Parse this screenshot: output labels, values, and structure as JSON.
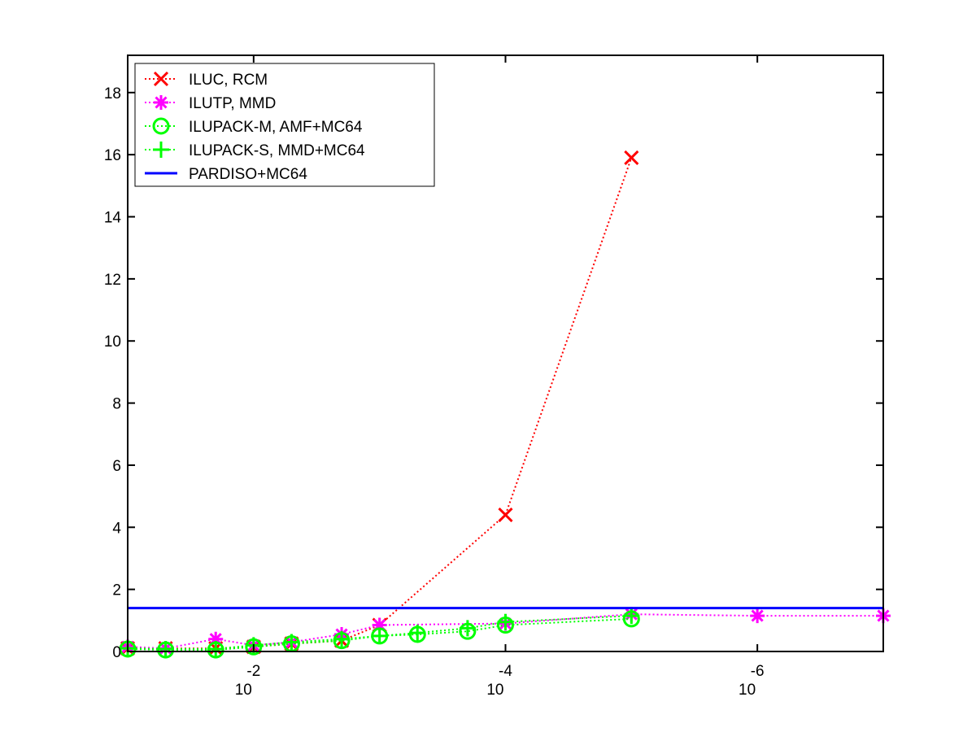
{
  "chart_data": {
    "type": "line",
    "title": "",
    "xlabel": "",
    "ylabel": "",
    "x_scale": "log-reversed",
    "xlim": [
      0.1,
      1e-07
    ],
    "ylim": [
      0,
      19.2
    ],
    "x_ticks": [
      {
        "value": 0.01,
        "base": "10",
        "exp": "-2"
      },
      {
        "value": 0.0001,
        "base": "10",
        "exp": "-4"
      },
      {
        "value": 1e-06,
        "base": "10",
        "exp": "-6"
      }
    ],
    "y_ticks": [
      0,
      2,
      4,
      6,
      8,
      10,
      12,
      14,
      16,
      18
    ],
    "grid": false,
    "legend": "top-left",
    "series": [
      {
        "name": "ILUC, RCM",
        "color": "#ff0000",
        "marker": "x",
        "style": "dotted",
        "x": [
          0.1,
          0.05,
          0.02,
          0.01,
          0.005,
          0.002,
          0.001,
          0.0001,
          1e-05
        ],
        "y": [
          0.1,
          0.1,
          0.1,
          0.15,
          0.25,
          0.35,
          0.85,
          4.4,
          15.9
        ]
      },
      {
        "name": "ILUTP, MMD",
        "color": "#ff00ff",
        "marker": "asterisk",
        "style": "dotted",
        "x": [
          0.1,
          0.05,
          0.02,
          0.01,
          0.005,
          0.002,
          0.001,
          0.0001,
          1e-05,
          1e-06,
          1e-07
        ],
        "y": [
          0.15,
          0.1,
          0.4,
          0.2,
          0.3,
          0.55,
          0.85,
          0.9,
          1.2,
          1.15,
          1.15
        ]
      },
      {
        "name": "ILUPACK-M, AMF+MC64",
        "color": "#00ff00",
        "marker": "circle",
        "style": "dotted",
        "x": [
          0.1,
          0.05,
          0.02,
          0.01,
          0.005,
          0.002,
          0.001,
          0.0005,
          0.0002,
          0.0001,
          1e-05
        ],
        "y": [
          0.08,
          0.05,
          0.05,
          0.15,
          0.25,
          0.35,
          0.5,
          0.55,
          0.65,
          0.85,
          1.05
        ]
      },
      {
        "name": "ILUPACK-S, MMD+MC64",
        "color": "#00ff00",
        "marker": "plus",
        "style": "dotted",
        "x": [
          0.1,
          0.05,
          0.02,
          0.01,
          0.005,
          0.002,
          0.001,
          0.0005,
          0.0002,
          0.0001,
          1e-05
        ],
        "y": [
          0.1,
          0.08,
          0.08,
          0.2,
          0.3,
          0.4,
          0.5,
          0.6,
          0.75,
          0.95,
          1.15
        ]
      },
      {
        "name": "PARDISO+MC64",
        "color": "#0000ff",
        "marker": "none",
        "style": "solid",
        "x": [
          0.1,
          1e-07
        ],
        "y": [
          1.4,
          1.4
        ]
      }
    ]
  }
}
